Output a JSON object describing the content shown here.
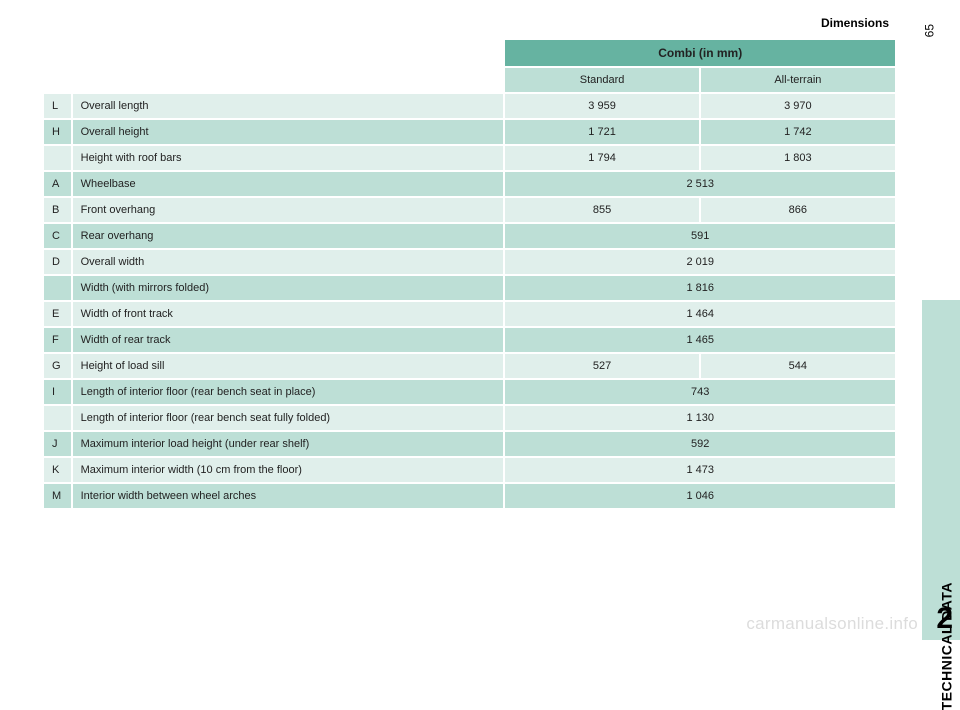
{
  "header": {
    "title": "Dimensions"
  },
  "page_number": "65",
  "section_label": "TECHNICAL DATA",
  "section_number": "2",
  "watermark": "carmanualsonline.info",
  "table": {
    "main_header": "Combi (in mm)",
    "sub_headers": {
      "std": "Standard",
      "at": "All-terrain"
    },
    "rows": [
      {
        "code": "L",
        "desc": "Overall length",
        "std": "3 959",
        "at": "3 970",
        "shade": "light",
        "span": false
      },
      {
        "code": "H",
        "desc": "Overall height",
        "std": "1 721",
        "at": "1 742",
        "shade": "dark",
        "span": false
      },
      {
        "code": "",
        "desc": "Height with roof bars",
        "std": "1 794",
        "at": "1 803",
        "shade": "light",
        "span": false
      },
      {
        "code": "A",
        "desc": "Wheelbase",
        "std": "2 513",
        "at": "",
        "shade": "dark",
        "span": true
      },
      {
        "code": "B",
        "desc": "Front overhang",
        "std": "855",
        "at": "866",
        "shade": "light",
        "span": false
      },
      {
        "code": "C",
        "desc": "Rear overhang",
        "std": "591",
        "at": "",
        "shade": "dark",
        "span": true
      },
      {
        "code": "D",
        "desc": "Overall width",
        "std": "2 019",
        "at": "",
        "shade": "light",
        "span": true
      },
      {
        "code": "",
        "desc": "Width (with mirrors folded)",
        "std": "1 816",
        "at": "",
        "shade": "dark",
        "span": true
      },
      {
        "code": "E",
        "desc": "Width of front track",
        "std": "1 464",
        "at": "",
        "shade": "light",
        "span": true
      },
      {
        "code": "F",
        "desc": "Width of rear track",
        "std": "1 465",
        "at": "",
        "shade": "dark",
        "span": true
      },
      {
        "code": "G",
        "desc": "Height of load sill",
        "std": "527",
        "at": "544",
        "shade": "light",
        "span": false
      },
      {
        "code": "I",
        "desc": "Length of interior floor (rear bench seat in place)",
        "std": "743",
        "at": "",
        "shade": "dark",
        "span": true
      },
      {
        "code": "",
        "desc": "Length of interior floor (rear bench seat fully folded)",
        "std": "1 130",
        "at": "",
        "shade": "light",
        "span": true
      },
      {
        "code": "J",
        "desc": "Maximum interior load height (under rear shelf)",
        "std": "592",
        "at": "",
        "shade": "dark",
        "span": true
      },
      {
        "code": "K",
        "desc": "Maximum interior width (10 cm from the floor)",
        "std": "1 473",
        "at": "",
        "shade": "light",
        "span": true
      },
      {
        "code": "M",
        "desc": "Interior width between wheel arches",
        "std": "1 046",
        "at": "",
        "shade": "dark",
        "span": true
      }
    ]
  }
}
